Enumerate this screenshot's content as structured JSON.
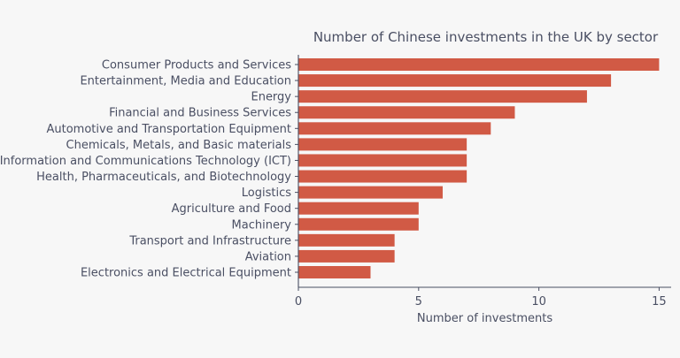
{
  "chart_data": {
    "type": "bar",
    "orientation": "horizontal",
    "title": "Number of Chinese investments in the UK by sector",
    "xlabel": "Number of investments",
    "ylabel": "",
    "xlim": [
      0,
      15.5
    ],
    "xticks": [
      0,
      5,
      10,
      15
    ],
    "grid": false,
    "categories": [
      "Consumer Products and Services",
      "Entertainment, Media and Education",
      "Energy",
      "Financial and Business Services",
      "Automotive and Transportation Equipment",
      "Chemicals, Metals, and Basic materials",
      "Information and Communications Technology (ICT)",
      "Health, Pharmaceuticals, and Biotechnology",
      "Logistics",
      "Agriculture and Food",
      "Machinery",
      "Transport and Infrastructure",
      "Aviation",
      "Electronics and Electrical Equipment"
    ],
    "values": [
      15,
      13,
      12,
      9,
      8,
      7,
      7,
      7,
      6,
      5,
      5,
      4,
      4,
      3
    ]
  },
  "colors": {
    "background": "#f7f7f7",
    "bar": "#d15a45",
    "text": "#4a4f63",
    "axis": "#4a4f63"
  }
}
